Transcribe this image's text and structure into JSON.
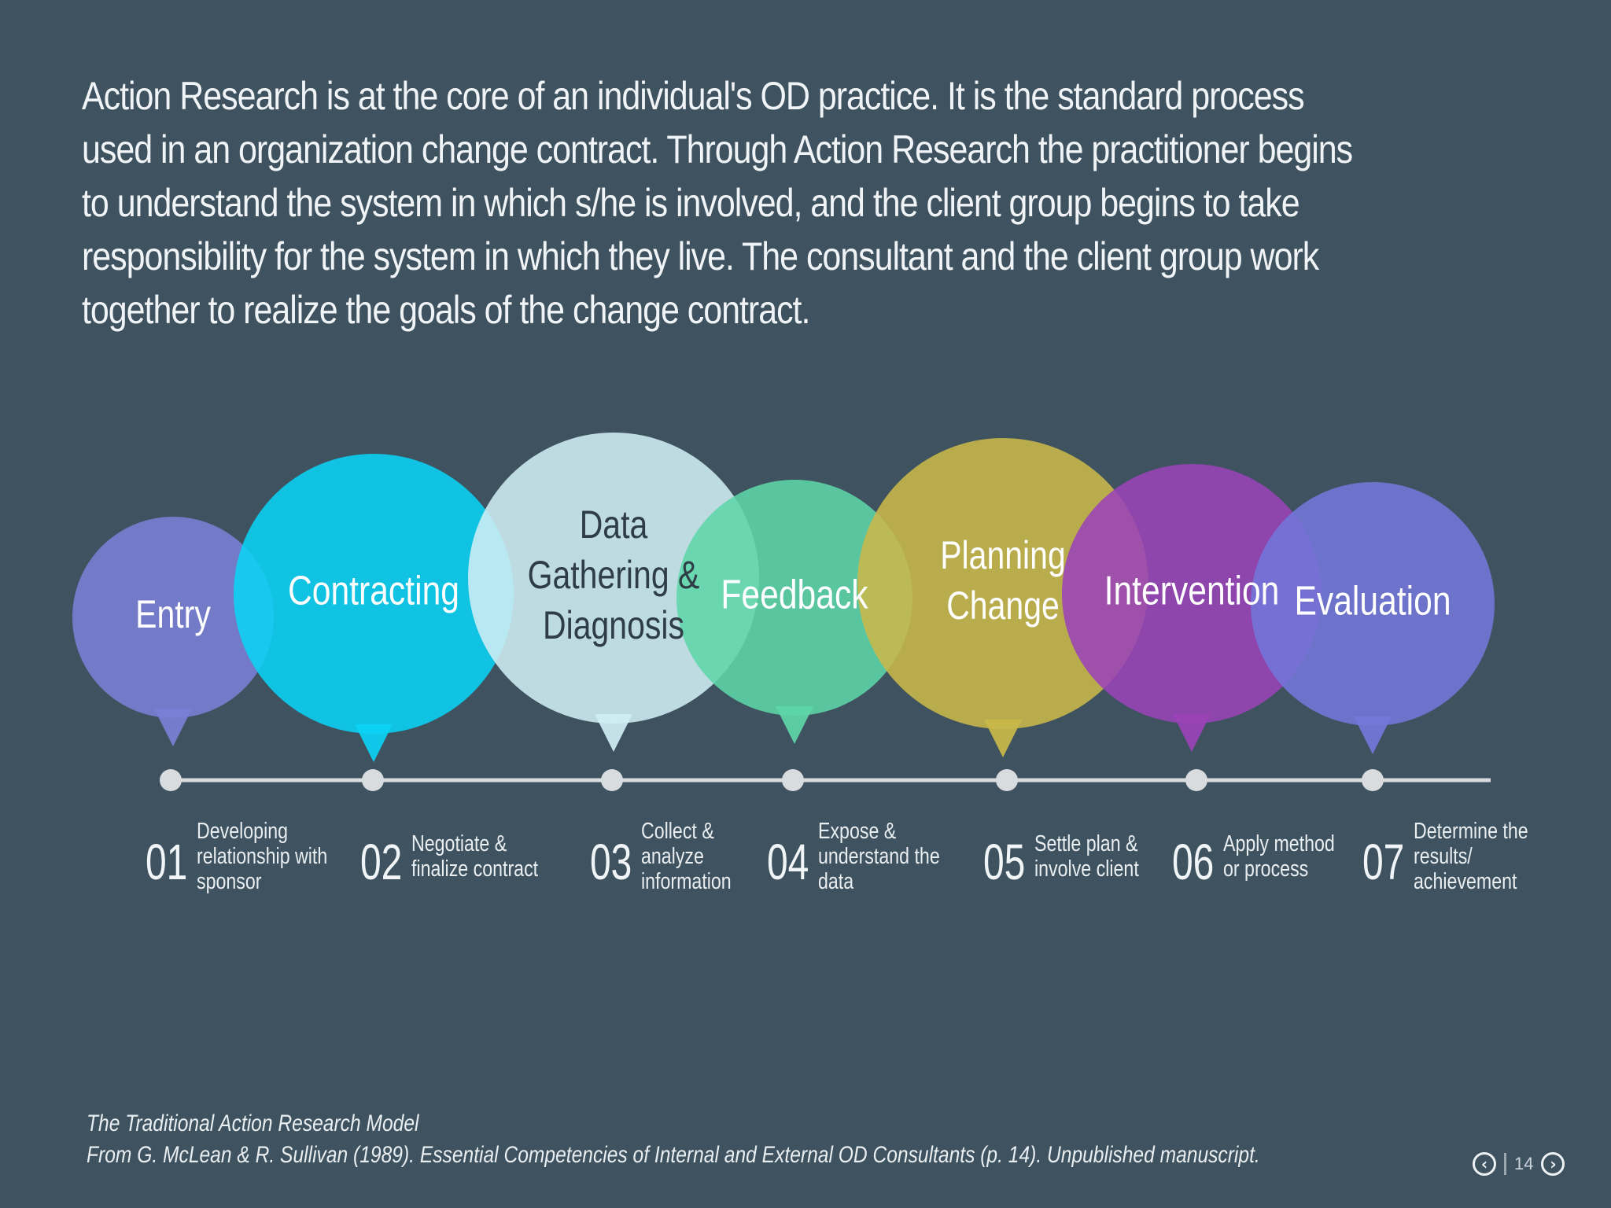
{
  "intro": {
    "text": "Action Research is at the core of an individual's OD practice. It is the standard process used in an organization change contract. Through Action Research the practitioner begins to understand the system in which s/he is involved, and the client group begins to take responsibility for the system in which they live. The consultant and the client group work together to realize the goals of the change contract."
  },
  "stages": [
    {
      "label_lines": [
        "Entry"
      ],
      "number": "01",
      "desc_lines": [
        "Developing",
        "relationship with",
        "sponsor"
      ],
      "color": "#7b7fd6",
      "label_color": "#ffffff"
    },
    {
      "label_lines": [
        "Contracting"
      ],
      "number": "02",
      "desc_lines": [
        "Negotiate &",
        "finalize contract"
      ],
      "color": "#0bd3f5",
      "label_color": "#ffffff"
    },
    {
      "label_lines": [
        "Data",
        "Gathering &",
        "Diagnosis"
      ],
      "number": "03",
      "desc_lines": [
        "Collect &",
        "analyze",
        "information"
      ],
      "color": "#cfeef4",
      "label_color": "#2f3d47"
    },
    {
      "label_lines": [
        "Feedback"
      ],
      "number": "04",
      "desc_lines": [
        "Expose &",
        "understand the",
        "data"
      ],
      "color": "#5fd6a8",
      "label_color": "#ffffff"
    },
    {
      "label_lines": [
        "Planning",
        "Change"
      ],
      "number": "05",
      "desc_lines": [
        "Settle plan &",
        "involve client"
      ],
      "color": "#c9b84a",
      "label_color": "#ffffff"
    },
    {
      "label_lines": [
        "Intervention"
      ],
      "number": "06",
      "desc_lines": [
        "Apply method",
        "or process"
      ],
      "color": "#9a43b7",
      "label_color": "#ffffff"
    },
    {
      "label_lines": [
        "Evaluation"
      ],
      "number": "07",
      "desc_lines": [
        "Determine the",
        "results/",
        "achievement"
      ],
      "color": "#7476d9",
      "label_color": "#ffffff"
    }
  ],
  "caption": {
    "title": "The Traditional Action Research Model",
    "source": "From G. McLean & R. Sullivan (1989). Essential Competencies of Internal and External OD Consultants (p. 14). Unpublished manuscript."
  },
  "nav": {
    "page": "14",
    "prev_icon": "chevron-left-icon",
    "next_icon": "chevron-right-icon"
  },
  "colors": {
    "background": "#3e525f",
    "timeline": "#d8dcdf"
  }
}
